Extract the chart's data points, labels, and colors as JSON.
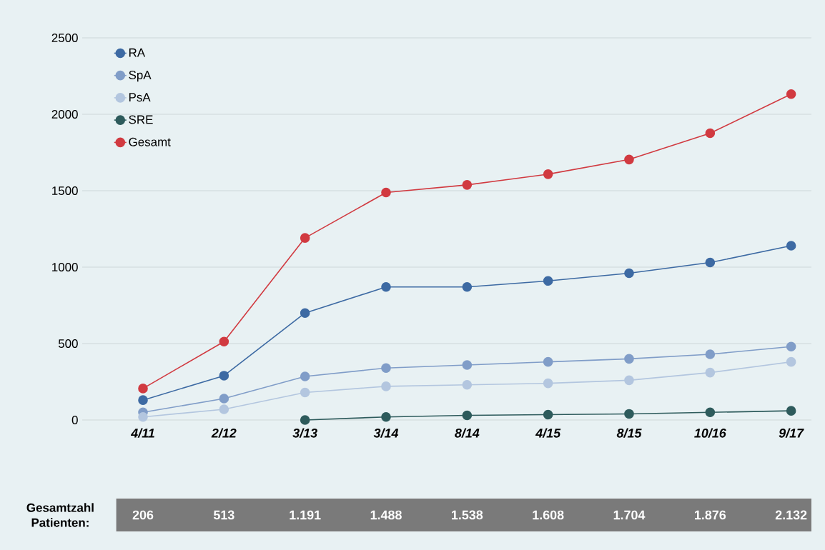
{
  "chart_data": {
    "type": "line",
    "categories": [
      "4/11",
      "2/12",
      "3/13",
      "3/14",
      "8/14",
      "4/15",
      "8/15",
      "10/16",
      "9/17"
    ],
    "series": [
      {
        "name": "RA",
        "color": "#3d6aa3",
        "values": [
          130,
          290,
          700,
          870,
          870,
          910,
          960,
          1030,
          1140
        ]
      },
      {
        "name": "SpA",
        "color": "#809dc8",
        "values": [
          50,
          140,
          285,
          340,
          360,
          380,
          400,
          430,
          480
        ]
      },
      {
        "name": "PsA",
        "color": "#b3c6df",
        "values": [
          20,
          70,
          180,
          220,
          230,
          240,
          260,
          310,
          380
        ]
      },
      {
        "name": "SRE",
        "color": "#2e5b5c",
        "values": [
          null,
          null,
          0,
          20,
          30,
          35,
          40,
          50,
          60
        ]
      },
      {
        "name": "Gesamt",
        "color": "#d13a40",
        "values": [
          206,
          513,
          1191,
          1488,
          1538,
          1608,
          1704,
          1876,
          2132
        ],
        "value_labels": [
          "206",
          "513",
          "1.191",
          "1.488",
          "1.538",
          "1.608",
          "1.704",
          "1.876",
          "2.132"
        ]
      }
    ],
    "ylim": [
      0,
      2500
    ],
    "yticks": [
      0,
      500,
      1000,
      1500,
      2000,
      2500
    ],
    "grid": "y",
    "legend": "top left",
    "marker": "circle",
    "annotations": [
      "Gesamtzahl Patienten:"
    ]
  }
}
